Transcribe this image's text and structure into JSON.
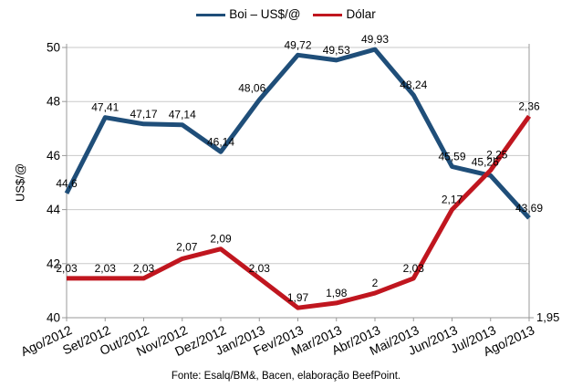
{
  "chart_data": {
    "type": "line",
    "categories": [
      "Ago/2012",
      "Set/2012",
      "Out/2012",
      "Nov/2012",
      "Dez/2012",
      "Jan/2013",
      "Fev/2013",
      "Mar/2013",
      "Abr/2013",
      "Mai/2013",
      "Jun/2013",
      "Jul/2013",
      "Ago/2013"
    ],
    "series": [
      {
        "name": "Boi – US$/@",
        "color": "#1f4e79",
        "axis": "left",
        "values": [
          44.6,
          47.41,
          47.17,
          47.14,
          46.14,
          48.06,
          49.72,
          49.53,
          49.93,
          48.24,
          45.59,
          45.26,
          43.69
        ],
        "labels": [
          "44,6",
          "47,41",
          "47,17",
          "47,14",
          "46,14",
          "48,06",
          "49,72",
          "49,53",
          "49,93",
          "48,24",
          "45,59",
          "45,26",
          "43,69"
        ],
        "label_offsets": {
          "5": [
            -8,
            -2
          ],
          "11": [
            -6,
            -4
          ]
        }
      },
      {
        "name": "Dólar",
        "color": "#c0161f",
        "axis": "right",
        "values": [
          2.03,
          2.03,
          2.03,
          2.07,
          2.09,
          2.03,
          1.97,
          1.98,
          2.0,
          2.03,
          2.17,
          2.25,
          2.36
        ],
        "labels": [
          "2,03",
          "2,03",
          "2,03",
          "2,07",
          "2,09",
          "2,03",
          "1,97",
          "1,98",
          "2",
          "2,03",
          "2,17",
          "2,25",
          "2,36"
        ],
        "label_offsets": {
          "3": [
            5,
            -2
          ],
          "11": [
            7,
            -6
          ]
        }
      }
    ],
    "left_axis": {
      "title": "US$/@",
      "min": 40,
      "max": 50,
      "ticks": [
        "40",
        "42",
        "44",
        "46",
        "48",
        "50"
      ]
    },
    "right_axis": {
      "min": 1.95,
      "max": 2.5,
      "visible_label": "1,95"
    },
    "legend_position": "top",
    "grid": "horizontal",
    "footer": "Fonte: Esalq/BM&, Bacen, elaboração BeefPoint."
  }
}
